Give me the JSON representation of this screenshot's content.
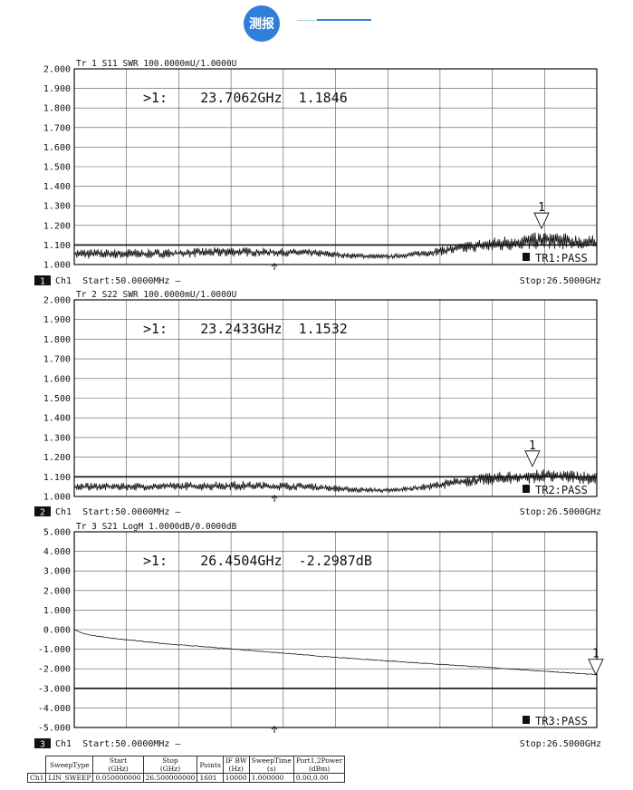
{
  "header": {
    "badge": "测报"
  },
  "panels": [
    {
      "id": "tr1",
      "channel_num": "1",
      "title": "Tr 1  S11 SWR 100.0000mU/1.0000U",
      "marker_readout": ">1:    23.7062GHz  1.1846",
      "marker_label": "1",
      "status": "TR1:PASS",
      "start": "Ch1  Start:50.0000MHz —",
      "stop": "Stop:26.5000GHz"
    },
    {
      "id": "tr2",
      "channel_num": "2",
      "title": "Tr 2  S22 SWR 100.0000mU/1.0000U",
      "marker_readout": ">1:    23.2433GHz  1.1532",
      "marker_label": "1",
      "status": "TR2:PASS",
      "start": "Ch1  Start:50.0000MHz —",
      "stop": "Stop:26.5000GHz"
    },
    {
      "id": "tr3",
      "channel_num": "3",
      "title": "Tr 3  S21 LogM 1.0000dB/0.0000dB",
      "marker_readout": ">1:    26.4504GHz  -2.2987dB",
      "marker_label": "1",
      "status": "TR3:PASS",
      "start": "Ch1  Start:50.0000MHz —",
      "stop": "Stop:26.5000GHz"
    }
  ],
  "chart_data": [
    {
      "type": "line",
      "title": "Tr 1  S11 SWR 100.0000mU/1.0000U",
      "x_range_ghz": [
        0.05,
        26.5
      ],
      "ylim": [
        1.0,
        2.0
      ],
      "y_ticks": [
        "2.000",
        "1.900",
        "1.800",
        "1.700",
        "1.600",
        "1.500",
        "1.400",
        "1.300",
        "1.200",
        "1.100",
        "1.000"
      ],
      "grid": true,
      "limit_line": 1.1,
      "envelope": {
        "x": [
          0.05,
          4,
          8,
          12,
          14,
          16,
          18,
          20,
          22,
          24,
          26,
          26.5
        ],
        "min": [
          1.03,
          1.03,
          1.04,
          1.04,
          1.03,
          1.03,
          1.04,
          1.06,
          1.07,
          1.08,
          1.07,
          1.07
        ],
        "max": [
          1.08,
          1.08,
          1.09,
          1.08,
          1.06,
          1.05,
          1.08,
          1.12,
          1.15,
          1.17,
          1.15,
          1.15
        ]
      },
      "marker": {
        "x": 23.7062,
        "y": 1.1846
      }
    },
    {
      "type": "line",
      "title": "Tr 2  S22 SWR 100.0000mU/1.0000U",
      "x_range_ghz": [
        0.05,
        26.5
      ],
      "ylim": [
        1.0,
        2.0
      ],
      "y_ticks": [
        "2.000",
        "1.900",
        "1.800",
        "1.700",
        "1.600",
        "1.500",
        "1.400",
        "1.300",
        "1.200",
        "1.100",
        "1.000"
      ],
      "grid": true,
      "limit_line": 1.1,
      "envelope": {
        "x": [
          0.05,
          4,
          8,
          12,
          14,
          16,
          18,
          20,
          22,
          24,
          26,
          26.5
        ],
        "min": [
          1.03,
          1.03,
          1.03,
          1.03,
          1.02,
          1.02,
          1.03,
          1.05,
          1.06,
          1.07,
          1.06,
          1.06
        ],
        "max": [
          1.07,
          1.07,
          1.08,
          1.07,
          1.05,
          1.04,
          1.07,
          1.11,
          1.13,
          1.14,
          1.13,
          1.12
        ]
      },
      "marker": {
        "x": 23.2433,
        "y": 1.1532
      }
    },
    {
      "type": "line",
      "title": "Tr 3  S21 LogM 1.0000dB/0.0000dB",
      "x_range_ghz": [
        0.05,
        26.5
      ],
      "ylim": [
        -5.0,
        5.0
      ],
      "y_ticks": [
        "5.000",
        "4.000",
        "3.000",
        "2.000",
        "1.000",
        "0.000",
        "-1.000",
        "-2.000",
        "-3.000",
        "-4.000",
        "-5.000"
      ],
      "grid": true,
      "limit_line": -3.0,
      "curve": {
        "x": [
          0.05,
          0.5,
          1,
          2,
          3,
          5,
          7,
          10,
          13,
          16,
          19,
          22,
          25,
          26.45
        ],
        "y": [
          0.0,
          -0.2,
          -0.3,
          -0.45,
          -0.55,
          -0.75,
          -0.9,
          -1.15,
          -1.4,
          -1.6,
          -1.8,
          -2.0,
          -2.2,
          -2.2987
        ]
      },
      "marker": {
        "x": 26.4504,
        "y": -2.2987
      }
    }
  ],
  "settings_table": {
    "headers": [
      [
        "",
        "SweepType",
        "Start\n(GHz)",
        "Stop\n(GHz)",
        "Points",
        "IF BW\n(Hz)",
        "SweepTime\n(s)",
        "Port1,2Power\n(dBm)"
      ]
    ],
    "row": [
      "Ch1",
      "LIN_SWEEP",
      "0.050000000",
      "26.500000000",
      "1601",
      "10000",
      "1.000000",
      "0.00,0.00"
    ]
  }
}
